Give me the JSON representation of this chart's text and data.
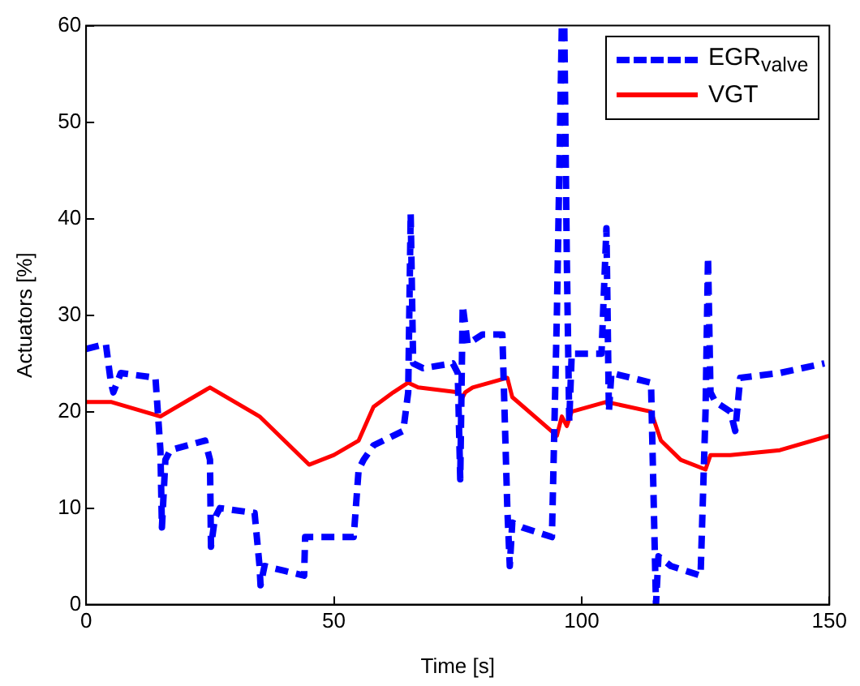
{
  "chart_data": {
    "type": "line",
    "xlabel": "Time [s]",
    "ylabel": "Actuators [%]",
    "xlim": [
      0,
      150
    ],
    "ylim": [
      0,
      60
    ],
    "xticks": [
      0,
      50,
      100,
      150
    ],
    "yticks": [
      0,
      10,
      20,
      30,
      40,
      50,
      60
    ],
    "grid": false,
    "legend": "top right",
    "marker": "none",
    "series": [
      {
        "name": "EGR$_{valve}$",
        "color": "#0000ff",
        "line_style": "dashed",
        "x": [
          0,
          4,
          5,
          5.5,
          7,
          14,
          15,
          15.3,
          16,
          17,
          24,
          25,
          25.2,
          26,
          27,
          34,
          35,
          35.2,
          36,
          40,
          44,
          44.2,
          54,
          55,
          56,
          58,
          64,
          65,
          65.5,
          66,
          68,
          74,
          75,
          75.5,
          76,
          77,
          80,
          84,
          85,
          85.5,
          86,
          88,
          94,
          95,
          96,
          96.5,
          97,
          97.5,
          98,
          104,
          105,
          105.5,
          106,
          114,
          115,
          115.5,
          118,
          124,
          125,
          125.5,
          126,
          127,
          130,
          131,
          132,
          140,
          149
        ],
        "values": [
          26.5,
          27,
          23,
          22,
          24,
          23.5,
          16,
          8,
          15,
          16,
          17,
          15,
          6,
          9,
          10,
          9.5,
          4,
          2,
          4,
          3.5,
          3,
          7,
          7,
          14,
          15,
          16.5,
          18,
          22,
          40.5,
          25,
          24.5,
          25,
          24,
          13,
          31,
          27,
          28,
          28,
          10,
          4,
          8.5,
          8,
          7,
          30,
          60,
          60,
          36,
          19,
          26,
          26,
          39,
          20,
          24,
          23,
          0,
          5,
          4,
          3,
          20,
          36,
          22,
          21,
          20,
          18,
          23.5,
          24,
          25
        ]
      },
      {
        "name": "VGT",
        "color": "#ff0000",
        "line_style": "solid",
        "x": [
          0,
          5,
          15,
          25,
          35,
          45,
          50,
          55,
          58,
          62,
          65,
          67,
          75,
          76,
          76.5,
          78,
          85,
          86,
          95,
          96,
          97,
          98,
          105,
          114,
          116,
          120,
          125,
          126,
          130,
          140,
          150
        ],
        "values": [
          21,
          21,
          19.5,
          22.5,
          19.5,
          14.5,
          15.5,
          17,
          20.5,
          22,
          23,
          22.5,
          22,
          21.5,
          22,
          22.5,
          23.5,
          21.5,
          17.5,
          19.5,
          18.5,
          20,
          21,
          20,
          17,
          15,
          14,
          15.5,
          15.5,
          16,
          17.5
        ]
      }
    ]
  }
}
